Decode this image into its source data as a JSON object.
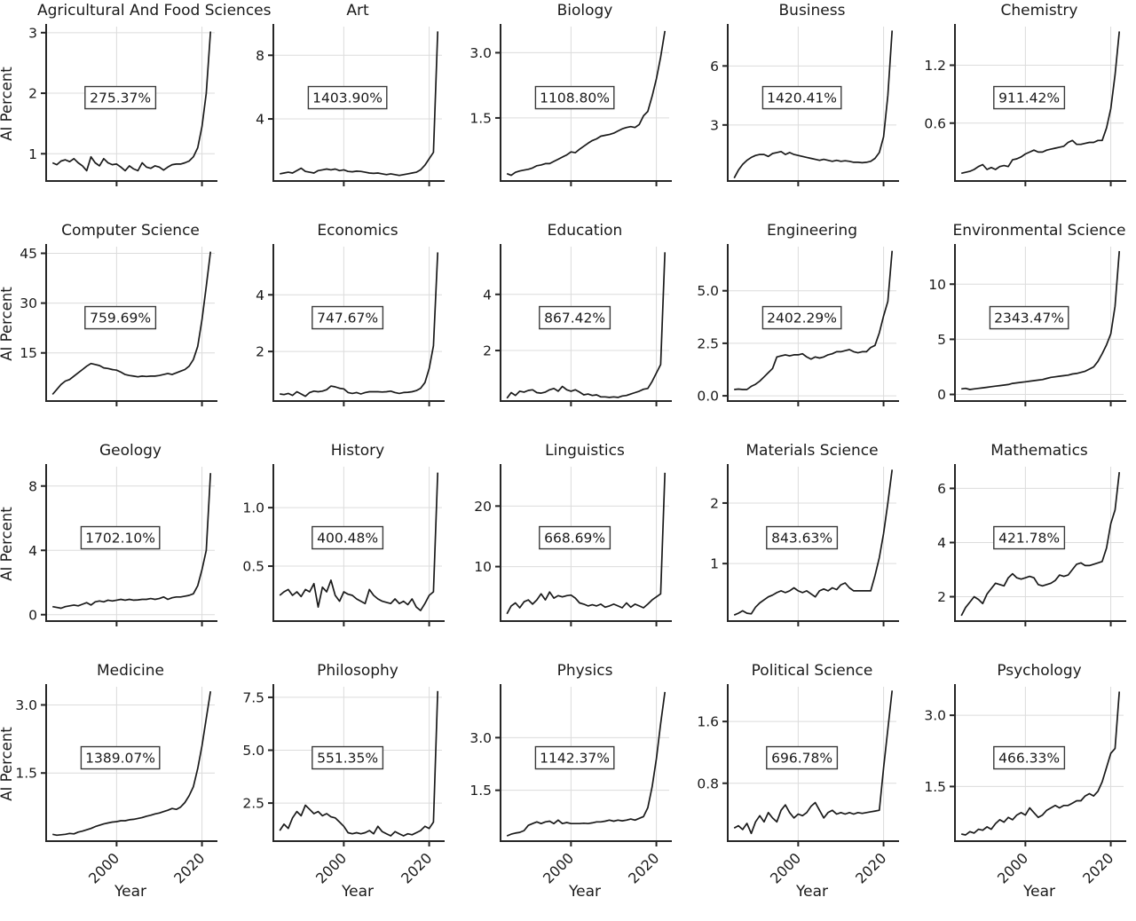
{
  "figure": {
    "title": "",
    "xlabel": "Year",
    "ylabel": "AI Percent",
    "xticks": [
      "2000",
      "2020"
    ],
    "xlim": [
      1983.5,
      2023
    ],
    "grid": true,
    "legend": "none",
    "line_color": "#1a1a1a",
    "axis_color": "#262626",
    "text_color": "#1a1a1a",
    "grid_color": "#dcdcdc",
    "layout": "4 rows x 5 columns small multiples; y-axis label only on first column; x tick labels and Year label only on bottom row",
    "years": [
      1985,
      1986,
      1987,
      1988,
      1989,
      1990,
      1991,
      1992,
      1993,
      1994,
      1995,
      1996,
      1997,
      1998,
      1999,
      2000,
      2001,
      2002,
      2003,
      2004,
      2005,
      2006,
      2007,
      2008,
      2009,
      2010,
      2011,
      2012,
      2013,
      2014,
      2015,
      2016,
      2017,
      2018,
      2019,
      2020,
      2021,
      2022
    ]
  },
  "chart_data": [
    {
      "type": "line",
      "title": "Agricultural And Food Sciences",
      "annotation": "275.37%",
      "yticks": [
        "1",
        "2",
        "3"
      ],
      "ylim": [
        0.55,
        3.1
      ],
      "values": [
        0.85,
        0.82,
        0.88,
        0.9,
        0.87,
        0.92,
        0.85,
        0.8,
        0.72,
        0.95,
        0.85,
        0.8,
        0.92,
        0.85,
        0.82,
        0.83,
        0.78,
        0.72,
        0.8,
        0.75,
        0.72,
        0.85,
        0.78,
        0.76,
        0.8,
        0.78,
        0.73,
        0.78,
        0.82,
        0.83,
        0.83,
        0.85,
        0.88,
        0.95,
        1.1,
        1.45,
        2.0,
        3.02
      ]
    },
    {
      "type": "line",
      "title": "Art",
      "annotation": "1403.90%",
      "yticks": [
        "4",
        "8"
      ],
      "ylim": [
        0.1,
        9.8
      ],
      "values": [
        0.55,
        0.6,
        0.65,
        0.6,
        0.75,
        0.9,
        0.7,
        0.65,
        0.6,
        0.75,
        0.8,
        0.85,
        0.8,
        0.85,
        0.75,
        0.8,
        0.7,
        0.68,
        0.72,
        0.7,
        0.65,
        0.6,
        0.58,
        0.6,
        0.55,
        0.5,
        0.55,
        0.5,
        0.45,
        0.5,
        0.55,
        0.6,
        0.65,
        0.8,
        1.1,
        1.5,
        1.9,
        9.5
      ]
    },
    {
      "type": "line",
      "title": "Biology",
      "annotation": "1108.80%",
      "yticks": [
        "1.5",
        "3.0"
      ],
      "ylim": [
        0.05,
        3.6
      ],
      "values": [
        0.22,
        0.18,
        0.25,
        0.28,
        0.3,
        0.32,
        0.35,
        0.4,
        0.42,
        0.45,
        0.45,
        0.5,
        0.55,
        0.6,
        0.65,
        0.72,
        0.7,
        0.78,
        0.85,
        0.92,
        0.98,
        1.02,
        1.08,
        1.1,
        1.12,
        1.15,
        1.2,
        1.25,
        1.28,
        1.3,
        1.28,
        1.35,
        1.55,
        1.65,
        2.0,
        2.4,
        2.9,
        3.5
      ]
    },
    {
      "type": "line",
      "title": "Business",
      "annotation": "1420.41%",
      "yticks": [
        "3",
        "6"
      ],
      "ylim": [
        0.15,
        8.0
      ],
      "values": [
        0.3,
        0.7,
        1.0,
        1.2,
        1.35,
        1.45,
        1.5,
        1.5,
        1.4,
        1.55,
        1.6,
        1.65,
        1.5,
        1.6,
        1.5,
        1.45,
        1.4,
        1.35,
        1.3,
        1.25,
        1.2,
        1.25,
        1.2,
        1.15,
        1.2,
        1.15,
        1.18,
        1.15,
        1.1,
        1.1,
        1.08,
        1.1,
        1.15,
        1.3,
        1.6,
        2.4,
        4.5,
        7.8
      ]
    },
    {
      "type": "line",
      "title": "Chemistry",
      "annotation": "911.42%",
      "yticks": [
        "0.6",
        "1.2"
      ],
      "ylim": [
        0.0,
        1.6
      ],
      "values": [
        0.08,
        0.09,
        0.1,
        0.12,
        0.15,
        0.17,
        0.12,
        0.14,
        0.12,
        0.15,
        0.16,
        0.15,
        0.22,
        0.23,
        0.25,
        0.28,
        0.3,
        0.32,
        0.3,
        0.3,
        0.32,
        0.33,
        0.34,
        0.35,
        0.36,
        0.4,
        0.42,
        0.38,
        0.38,
        0.39,
        0.4,
        0.4,
        0.42,
        0.42,
        0.55,
        0.75,
        1.1,
        1.55
      ]
    },
    {
      "type": "line",
      "title": "Computer Science",
      "annotation": "759.69%",
      "yticks": [
        "15",
        "30",
        "45"
      ],
      "ylim": [
        0.5,
        47
      ],
      "values": [
        2.5,
        4.0,
        5.5,
        6.5,
        7.0,
        8.0,
        9.0,
        10.0,
        11.0,
        11.8,
        11.5,
        11.2,
        10.5,
        10.3,
        10.0,
        9.8,
        9.2,
        8.5,
        8.2,
        8.0,
        7.8,
        8.0,
        7.9,
        8.0,
        8.0,
        8.2,
        8.5,
        8.8,
        8.5,
        9.0,
        9.5,
        10.0,
        11.0,
        13.0,
        17.0,
        25.0,
        35.0,
        45.5
      ]
    },
    {
      "type": "line",
      "title": "Economics",
      "annotation": "747.67%",
      "yticks": [
        "2",
        "4"
      ],
      "ylim": [
        0.25,
        5.7
      ],
      "values": [
        0.5,
        0.48,
        0.52,
        0.45,
        0.58,
        0.5,
        0.42,
        0.55,
        0.6,
        0.58,
        0.6,
        0.65,
        0.78,
        0.75,
        0.7,
        0.68,
        0.55,
        0.52,
        0.55,
        0.5,
        0.55,
        0.58,
        0.58,
        0.58,
        0.57,
        0.58,
        0.6,
        0.55,
        0.52,
        0.55,
        0.56,
        0.58,
        0.62,
        0.7,
        0.9,
        1.4,
        2.2,
        5.5
      ]
    },
    {
      "type": "line",
      "title": "Education",
      "annotation": "867.42%",
      "yticks": [
        "2",
        "4"
      ],
      "ylim": [
        0.2,
        5.7
      ],
      "values": [
        0.3,
        0.5,
        0.4,
        0.55,
        0.52,
        0.58,
        0.6,
        0.5,
        0.48,
        0.52,
        0.6,
        0.65,
        0.55,
        0.72,
        0.6,
        0.55,
        0.6,
        0.52,
        0.42,
        0.45,
        0.4,
        0.42,
        0.35,
        0.35,
        0.33,
        0.35,
        0.33,
        0.38,
        0.4,
        0.45,
        0.5,
        0.55,
        0.62,
        0.65,
        0.9,
        1.2,
        1.5,
        5.5
      ]
    },
    {
      "type": "line",
      "title": "Engineering",
      "annotation": "2402.29%",
      "yticks": [
        "0.0",
        "2.5",
        "5.0"
      ],
      "ylim": [
        -0.25,
        7.1
      ],
      "values": [
        0.3,
        0.32,
        0.3,
        0.3,
        0.45,
        0.55,
        0.7,
        0.9,
        1.1,
        1.3,
        1.85,
        1.9,
        1.95,
        1.9,
        1.95,
        1.95,
        2.0,
        1.85,
        1.75,
        1.85,
        1.8,
        1.85,
        1.95,
        2.0,
        2.1,
        2.1,
        2.15,
        2.2,
        2.1,
        2.05,
        2.1,
        2.1,
        2.3,
        2.4,
        3.0,
        3.8,
        4.5,
        6.9
      ]
    },
    {
      "type": "line",
      "title": "Environmental Science",
      "annotation": "2343.47%",
      "yticks": [
        "0",
        "5",
        "10"
      ],
      "ylim": [
        -0.6,
        13.4
      ],
      "values": [
        0.5,
        0.55,
        0.45,
        0.5,
        0.55,
        0.6,
        0.65,
        0.7,
        0.75,
        0.8,
        0.85,
        0.9,
        1.0,
        1.05,
        1.1,
        1.15,
        1.2,
        1.25,
        1.3,
        1.35,
        1.45,
        1.55,
        1.6,
        1.65,
        1.7,
        1.75,
        1.85,
        1.9,
        2.0,
        2.1,
        2.3,
        2.5,
        3.0,
        3.7,
        4.5,
        5.5,
        8.0,
        13.0
      ]
    },
    {
      "type": "line",
      "title": "Geology",
      "annotation": "1702.10%",
      "yticks": [
        "0",
        "4",
        "8"
      ],
      "ylim": [
        -0.4,
        9.2
      ],
      "values": [
        0.5,
        0.45,
        0.4,
        0.5,
        0.55,
        0.6,
        0.55,
        0.65,
        0.75,
        0.6,
        0.8,
        0.85,
        0.8,
        0.9,
        0.85,
        0.9,
        0.95,
        0.9,
        0.95,
        0.9,
        0.92,
        0.95,
        0.95,
        1.0,
        0.95,
        1.0,
        1.1,
        0.95,
        1.05,
        1.1,
        1.1,
        1.15,
        1.2,
        1.3,
        1.8,
        2.8,
        4.0,
        8.8
      ]
    },
    {
      "type": "line",
      "title": "History",
      "annotation": "400.48%",
      "yticks": [
        "0.5",
        "1.0"
      ],
      "ylim": [
        0.03,
        1.35
      ],
      "values": [
        0.25,
        0.28,
        0.3,
        0.25,
        0.28,
        0.24,
        0.3,
        0.28,
        0.35,
        0.15,
        0.32,
        0.28,
        0.38,
        0.25,
        0.2,
        0.28,
        0.26,
        0.25,
        0.22,
        0.2,
        0.18,
        0.3,
        0.25,
        0.22,
        0.2,
        0.19,
        0.18,
        0.22,
        0.18,
        0.2,
        0.17,
        0.22,
        0.15,
        0.12,
        0.18,
        0.25,
        0.28,
        1.3
      ]
    },
    {
      "type": "line",
      "title": "Linguistics",
      "annotation": "668.69%",
      "yticks": [
        "10",
        "20"
      ],
      "ylim": [
        1.0,
        26.5
      ],
      "values": [
        2.2,
        3.5,
        4.0,
        3.2,
        4.2,
        4.5,
        3.8,
        4.5,
        5.5,
        4.5,
        5.8,
        4.8,
        5.2,
        5.0,
        5.2,
        5.3,
        4.8,
        4.0,
        3.8,
        3.5,
        3.7,
        3.5,
        3.8,
        3.3,
        3.5,
        3.8,
        3.5,
        3.2,
        4.0,
        3.3,
        3.8,
        3.5,
        3.2,
        3.8,
        4.5,
        5.0,
        5.5,
        25.5
      ]
    },
    {
      "type": "line",
      "title": "Materials Science",
      "annotation": "843.63%",
      "yticks": [
        "1",
        "2"
      ],
      "ylim": [
        0.05,
        2.6
      ],
      "values": [
        0.15,
        0.18,
        0.22,
        0.18,
        0.17,
        0.28,
        0.35,
        0.4,
        0.45,
        0.48,
        0.52,
        0.55,
        0.52,
        0.55,
        0.6,
        0.55,
        0.52,
        0.55,
        0.5,
        0.45,
        0.55,
        0.58,
        0.55,
        0.6,
        0.57,
        0.65,
        0.68,
        0.6,
        0.55,
        0.55,
        0.55,
        0.55,
        0.55,
        0.8,
        1.1,
        1.5,
        2.0,
        2.55
      ]
    },
    {
      "type": "line",
      "title": "Mathematics",
      "annotation": "421.78%",
      "yticks": [
        "2",
        "4",
        "6"
      ],
      "ylim": [
        1.1,
        6.8
      ],
      "values": [
        1.3,
        1.6,
        1.8,
        2.0,
        1.9,
        1.75,
        2.1,
        2.3,
        2.5,
        2.45,
        2.4,
        2.7,
        2.85,
        2.7,
        2.65,
        2.7,
        2.75,
        2.7,
        2.45,
        2.4,
        2.45,
        2.5,
        2.6,
        2.8,
        2.75,
        2.8,
        3.0,
        3.2,
        3.25,
        3.15,
        3.15,
        3.2,
        3.25,
        3.3,
        3.8,
        4.7,
        5.2,
        6.6
      ]
    },
    {
      "type": "line",
      "title": "Medicine",
      "annotation": "1389.07%",
      "yticks": [
        "1.5",
        "3.0"
      ],
      "ylim": [
        0.0,
        3.4
      ],
      "values": [
        0.15,
        0.13,
        0.14,
        0.15,
        0.17,
        0.16,
        0.2,
        0.22,
        0.25,
        0.28,
        0.32,
        0.35,
        0.38,
        0.4,
        0.42,
        0.43,
        0.45,
        0.45,
        0.47,
        0.48,
        0.5,
        0.52,
        0.55,
        0.57,
        0.6,
        0.62,
        0.65,
        0.68,
        0.72,
        0.7,
        0.75,
        0.85,
        1.0,
        1.2,
        1.6,
        2.1,
        2.7,
        3.3
      ]
    },
    {
      "type": "line",
      "title": "Philosophy",
      "annotation": "551.35%",
      "yticks": [
        "2.5",
        "5.0",
        "7.5"
      ],
      "ylim": [
        0.7,
        8.0
      ],
      "values": [
        1.2,
        1.5,
        1.3,
        1.8,
        2.1,
        1.9,
        2.4,
        2.2,
        2.0,
        2.1,
        1.9,
        2.0,
        1.85,
        1.8,
        1.6,
        1.4,
        1.1,
        1.05,
        1.1,
        1.05,
        1.1,
        1.2,
        1.05,
        1.4,
        1.15,
        1.05,
        0.95,
        1.15,
        1.05,
        0.95,
        1.05,
        1.0,
        1.1,
        1.2,
        1.4,
        1.3,
        1.6,
        7.8
      ]
    },
    {
      "type": "line",
      "title": "Physics",
      "annotation": "1142.37%",
      "yticks": [
        "1.5",
        "3.0"
      ],
      "ylim": [
        0.05,
        4.45
      ],
      "values": [
        0.2,
        0.25,
        0.28,
        0.3,
        0.35,
        0.5,
        0.55,
        0.6,
        0.55,
        0.6,
        0.62,
        0.55,
        0.65,
        0.55,
        0.58,
        0.55,
        0.55,
        0.55,
        0.56,
        0.55,
        0.57,
        0.6,
        0.6,
        0.62,
        0.65,
        0.62,
        0.65,
        0.63,
        0.65,
        0.68,
        0.65,
        0.7,
        0.75,
        1.0,
        1.6,
        2.4,
        3.4,
        4.3
      ]
    },
    {
      "type": "line",
      "title": "Political Science",
      "annotation": "696.78%",
      "yticks": [
        "0.8",
        "1.6"
      ],
      "ylim": [
        0.05,
        2.05
      ],
      "values": [
        0.22,
        0.25,
        0.2,
        0.28,
        0.15,
        0.3,
        0.38,
        0.3,
        0.42,
        0.35,
        0.3,
        0.45,
        0.52,
        0.42,
        0.35,
        0.4,
        0.38,
        0.42,
        0.5,
        0.55,
        0.45,
        0.35,
        0.42,
        0.45,
        0.4,
        0.42,
        0.4,
        0.42,
        0.4,
        0.42,
        0.41,
        0.42,
        0.43,
        0.44,
        0.45,
        1.0,
        1.5,
        2.0
      ]
    },
    {
      "type": "line",
      "title": "Psychology",
      "annotation": "466.33%",
      "yticks": [
        "1.5",
        "3.0"
      ],
      "ylim": [
        0.35,
        3.6
      ],
      "values": [
        0.5,
        0.48,
        0.55,
        0.52,
        0.6,
        0.58,
        0.65,
        0.6,
        0.72,
        0.8,
        0.75,
        0.85,
        0.8,
        0.9,
        0.95,
        0.9,
        1.05,
        0.95,
        0.85,
        0.9,
        1.0,
        1.05,
        1.1,
        1.05,
        1.1,
        1.1,
        1.15,
        1.2,
        1.2,
        1.3,
        1.35,
        1.3,
        1.4,
        1.6,
        1.9,
        2.2,
        2.3,
        3.5
      ]
    }
  ]
}
